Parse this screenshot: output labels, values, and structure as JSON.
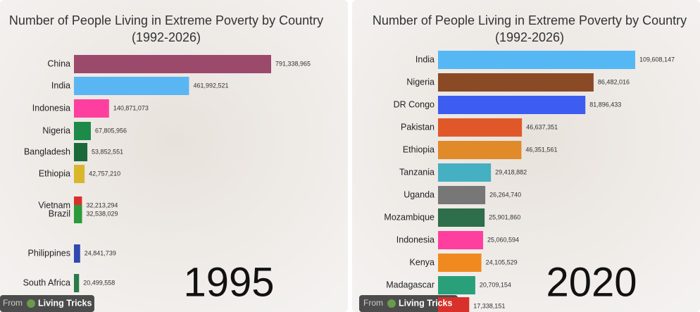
{
  "chart_data": [
    {
      "type": "bar",
      "orientation": "horizontal",
      "title": "Number of People Living in Extreme Poverty by Country",
      "subtitle": "(1992-2026)",
      "annotation": "1995",
      "categories": [
        "China",
        "India",
        "Indonesia",
        "Nigeria",
        "Bangladesh",
        "Ethiopia",
        "Vietnam",
        "Brazil",
        "Philippines",
        "South Africa"
      ],
      "values": [
        791338965,
        461992521,
        140871073,
        67805956,
        53852551,
        42757210,
        32213294,
        32538029,
        24841739,
        20499558
      ],
      "value_labels": [
        "791,338,965",
        "461,992,521",
        "140,871,073",
        "67,805,956",
        "53,852,551",
        "42,757,210",
        "32,213,294",
        "32,538,029",
        "24,841,739",
        "20,499,558"
      ],
      "colors": [
        "#9c4a6c",
        "#5ab6f2",
        "#ff3f9f",
        "#1e8a4a",
        "#1a6a3a",
        "#d9b72a",
        "#d8302a",
        "#2a9a3a",
        "#2f4ab0",
        "#2a7a4a"
      ]
    },
    {
      "type": "bar",
      "orientation": "horizontal",
      "title": "Number of People Living in Extreme Poverty by Country",
      "subtitle": "(1992-2026)",
      "annotation": "2020",
      "categories": [
        "India",
        "Nigeria",
        "DR Congo",
        "Pakistan",
        "Ethiopia",
        "Tanzania",
        "Uganda",
        "Mozambique",
        "Indonesia",
        "Kenya",
        "Madagascar",
        null
      ],
      "values": [
        109608147,
        86482016,
        81896433,
        46637351,
        46351561,
        29418882,
        26264740,
        25901860,
        25060594,
        24105529,
        20709154,
        17338151
      ],
      "value_labels": [
        "109,608,147",
        "86,482,016",
        "81,896,433",
        "46,637,351",
        "46,351,561",
        "29,418,882",
        "26,264,740",
        "25,901,860",
        "25,060,594",
        "24,105,529",
        "20,709,154",
        "17,338,151"
      ],
      "colors": [
        "#55b8f5",
        "#8b4a26",
        "#3d5cf0",
        "#e0582a",
        "#e08a2a",
        "#45b0c2",
        "#777777",
        "#2e6e4a",
        "#ff3f9f",
        "#f08a20",
        "#2aa07a",
        "#d8302a"
      ]
    }
  ],
  "overlays": [
    {
      "prefix": "From",
      "name": "Living Tricks"
    },
    {
      "prefix": "From",
      "name": "Living Tricks"
    }
  ]
}
